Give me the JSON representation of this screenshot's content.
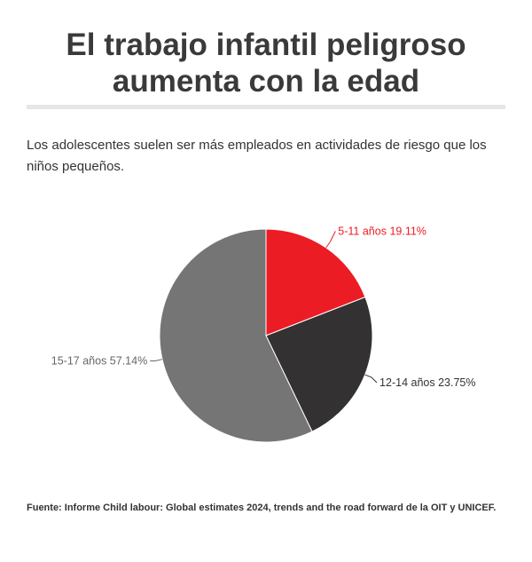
{
  "title_line1": "El trabajo infantil peligroso",
  "title_line2": "aumenta con la edad",
  "subtitle": "Los adolescentes suelen ser más empleados en actividades de riesgo que los niños pequeños.",
  "source": "Fuente: Informe Child labour: Global estimates 2024, trends and the road forward de la OIT y UNICEF.",
  "colors": {
    "red": "#ec1c24",
    "dark": "#333132",
    "gray": "#757575"
  },
  "chart_data": {
    "type": "pie",
    "title": "",
    "slices": [
      {
        "label": "5-11 años",
        "value": 19.11,
        "display": "5-11 años 19.11%",
        "color": "#ec1c24",
        "label_color": "#ec1c24"
      },
      {
        "label": "12-14 años",
        "value": 23.75,
        "display": "12-14 años 23.75%",
        "color": "#333132",
        "label_color": "#333333"
      },
      {
        "label": "15-17 años",
        "value": 57.14,
        "display": "15-17 años 57.14%",
        "color": "#757575",
        "label_color": "#666666"
      }
    ]
  }
}
